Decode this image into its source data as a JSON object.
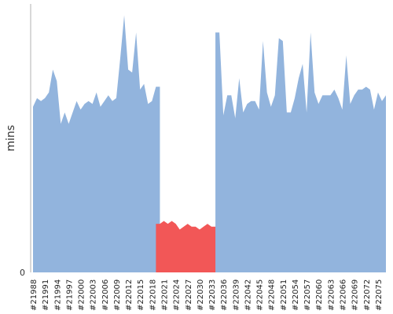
{
  "chart_data": {
    "type": "area",
    "title": "",
    "xlabel": "",
    "ylabel": "mins",
    "y_ticks": [
      0
    ],
    "ylim": [
      0,
      94
    ],
    "grid": false,
    "legend": "none",
    "x": [
      "#21988",
      "#21989",
      "#21990",
      "#21991",
      "#21992",
      "#21993",
      "#21994",
      "#21995",
      "#21996",
      "#21997",
      "#21998",
      "#21999",
      "#22000",
      "#22001",
      "#22002",
      "#22003",
      "#22004",
      "#22005",
      "#22006",
      "#22007",
      "#22008",
      "#22009",
      "#22010",
      "#22011",
      "#22012",
      "#22013",
      "#22014",
      "#22015",
      "#22016",
      "#22017",
      "#22018",
      "#22019",
      "#22020",
      "#22021",
      "#22022",
      "#22023",
      "#22024",
      "#22025",
      "#22026",
      "#22027",
      "#22028",
      "#22029",
      "#22030",
      "#22031",
      "#22032",
      "#22033",
      "#22034",
      "#22035",
      "#22036",
      "#22037",
      "#22038",
      "#22039",
      "#22040",
      "#22041",
      "#22042",
      "#22043",
      "#22044",
      "#22045",
      "#22046",
      "#22047",
      "#22048",
      "#22049",
      "#22050",
      "#22051",
      "#22052",
      "#22053",
      "#22054",
      "#22055",
      "#22056",
      "#22057",
      "#22058",
      "#22059",
      "#22060",
      "#22061",
      "#22062",
      "#22063",
      "#22064",
      "#22065",
      "#22066",
      "#22067",
      "#22068",
      "#22069",
      "#22070",
      "#22071",
      "#22072",
      "#22073",
      "#22074",
      "#22075",
      "#22076",
      "#22077"
    ],
    "x_tick_labels": [
      "#21988",
      "#21991",
      "#21994",
      "#21997",
      "#22000",
      "#22003",
      "#22006",
      "#22009",
      "#22012",
      "#22015",
      "#22018",
      "#22021",
      "#22024",
      "#22027",
      "#22030",
      "#22033",
      "#22036",
      "#22039",
      "#22042",
      "#22045",
      "#22048",
      "#22051",
      "#22054",
      "#22057",
      "#22060",
      "#22063",
      "#22066",
      "#22069",
      "#22072",
      "#22075"
    ],
    "values": [
      58,
      61,
      60,
      61,
      63,
      71,
      67,
      52,
      56,
      52,
      56,
      60,
      57,
      59,
      60,
      59,
      63,
      58,
      60,
      62,
      60,
      61,
      75,
      90,
      71,
      70,
      84,
      64,
      66,
      59,
      60,
      65,
      17,
      18,
      17,
      18,
      17,
      15,
      16,
      17,
      16,
      16,
      15,
      16,
      17,
      16,
      16,
      84,
      55,
      62,
      62,
      54,
      68,
      56,
      59,
      60,
      60,
      57,
      81,
      63,
      58,
      62,
      82,
      81,
      56,
      56,
      61,
      68,
      73,
      56,
      84,
      63,
      59,
      62,
      62,
      62,
      64,
      61,
      57,
      76,
      59,
      62,
      64,
      64,
      65,
      64,
      57,
      63,
      60,
      62
    ],
    "series": [
      {
        "color": "#92b4dd",
        "start": "#21988",
        "end": "#22019"
      },
      {
        "color": "#f25757",
        "start": "#22020",
        "end": "#22034"
      },
      {
        "color": "#92b4dd",
        "start": "#22035",
        "end": "#22077"
      }
    ]
  }
}
